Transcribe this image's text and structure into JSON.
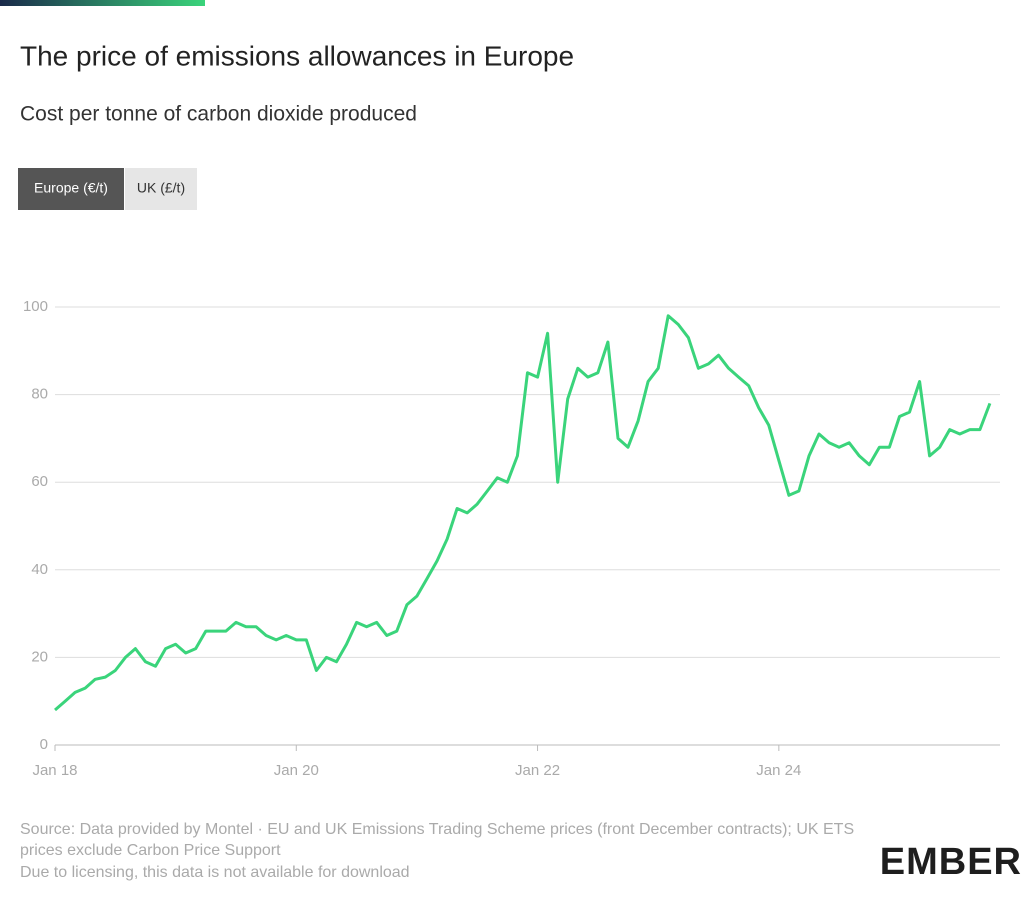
{
  "title": "The price of emissions allowances in Europe",
  "subtitle": "Cost per tonne of carbon dioxide produced",
  "tabs": [
    "Europe (€/t)",
    "UK (£/t)"
  ],
  "chart_data": {
    "type": "line",
    "x": [
      "2018-01",
      "2018-02",
      "2018-03",
      "2018-04",
      "2018-05",
      "2018-06",
      "2018-07",
      "2018-08",
      "2018-09",
      "2018-10",
      "2018-11",
      "2018-12",
      "2019-01",
      "2019-02",
      "2019-03",
      "2019-04",
      "2019-05",
      "2019-06",
      "2019-07",
      "2019-08",
      "2019-09",
      "2019-10",
      "2019-11",
      "2019-12",
      "2020-01",
      "2020-02",
      "2020-03",
      "2020-04",
      "2020-05",
      "2020-06",
      "2020-07",
      "2020-08",
      "2020-09",
      "2020-10",
      "2020-11",
      "2020-12",
      "2021-01",
      "2021-02",
      "2021-03",
      "2021-04",
      "2021-05",
      "2021-06",
      "2021-07",
      "2021-08",
      "2021-09",
      "2021-10",
      "2021-11",
      "2021-12",
      "2022-01",
      "2022-02",
      "2022-03",
      "2022-04",
      "2022-05",
      "2022-06",
      "2022-07",
      "2022-08",
      "2022-09",
      "2022-10",
      "2022-11",
      "2022-12",
      "2023-01",
      "2023-02",
      "2023-03",
      "2023-04",
      "2023-05",
      "2023-06",
      "2023-07",
      "2023-08",
      "2023-09",
      "2023-10",
      "2023-11",
      "2023-12",
      "2024-01",
      "2024-02",
      "2024-03",
      "2024-04",
      "2024-05",
      "2024-06",
      "2024-07",
      "2024-08",
      "2024-09",
      "2024-10",
      "2024-11",
      "2024-12",
      "2025-01",
      "2025-02",
      "2025-03",
      "2025-04",
      "2025-05",
      "2025-06",
      "2025-07",
      "2025-08",
      "2025-09",
      "2025-10"
    ],
    "series": [
      {
        "name": "Europe (€/t)",
        "color": "#3ad47b",
        "values": [
          8,
          10,
          12,
          13,
          15,
          15.5,
          17,
          20,
          22,
          19,
          18,
          22,
          23,
          21,
          22,
          26,
          26,
          26,
          28,
          27,
          27,
          25,
          24,
          25,
          24,
          24,
          17,
          20,
          19,
          23,
          28,
          27,
          28,
          25,
          26,
          32,
          34,
          38,
          42,
          47,
          54,
          53,
          55,
          58,
          61,
          60,
          66,
          85,
          84,
          94,
          60,
          79,
          86,
          84,
          85,
          92,
          70,
          68,
          74,
          83,
          86,
          98,
          96,
          93,
          86,
          87,
          89,
          86,
          84,
          82,
          77,
          73,
          65,
          57,
          58,
          66,
          71,
          69,
          68,
          69,
          66,
          64,
          68,
          68,
          75,
          76,
          83,
          66,
          68,
          72,
          71,
          72,
          72,
          78
        ]
      }
    ],
    "xlim": [
      "2018-01",
      "2025-11"
    ],
    "xticks": [
      {
        "value": "2018-01",
        "label": "Jan 18"
      },
      {
        "value": "2020-01",
        "label": "Jan 20"
      },
      {
        "value": "2022-01",
        "label": "Jan 22"
      },
      {
        "value": "2024-01",
        "label": "Jan 24"
      }
    ],
    "ylim": [
      0,
      100
    ],
    "yticks": [
      0,
      20,
      40,
      60,
      80,
      100
    ],
    "grid": true
  },
  "footer": [
    "Source: Data provided by Montel · EU and UK Emissions Trading Scheme prices (front December contracts); UK ETS",
    "prices exclude Carbon Price Support",
    "Due to licensing, this data is not available for download"
  ],
  "logo": "EMBER"
}
